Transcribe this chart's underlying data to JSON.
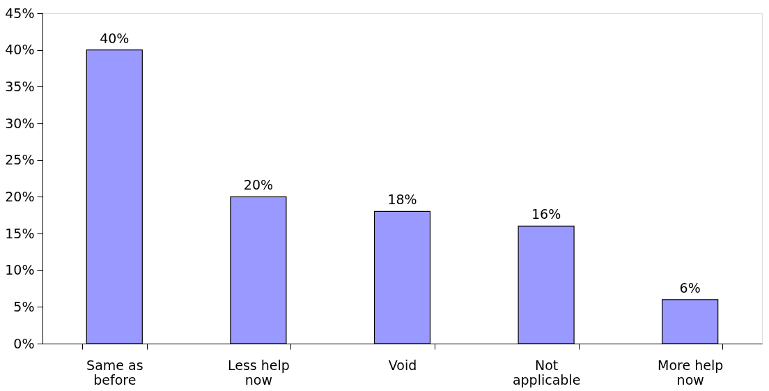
{
  "chart_data": {
    "type": "bar",
    "categories": [
      "Same as before",
      "Less help now",
      "Void",
      "Not applicable",
      "More help now"
    ],
    "values": [
      40,
      20,
      18,
      16,
      6
    ],
    "value_labels": [
      "40%",
      "20%",
      "18%",
      "16%",
      "6%"
    ],
    "color": "#9999ff",
    "ylim": [
      0,
      45
    ],
    "yticks": [
      {
        "value": 0,
        "label": "0%"
      },
      {
        "value": 5,
        "label": "5%"
      },
      {
        "value": 10,
        "label": "10%"
      },
      {
        "value": 15,
        "label": "15%"
      },
      {
        "value": 20,
        "label": "20%"
      },
      {
        "value": 25,
        "label": "25%"
      },
      {
        "value": 30,
        "label": "30%"
      },
      {
        "value": 35,
        "label": "35%"
      },
      {
        "value": 40,
        "label": "40%"
      },
      {
        "value": 45,
        "label": "45%"
      }
    ],
    "grid": false
  }
}
